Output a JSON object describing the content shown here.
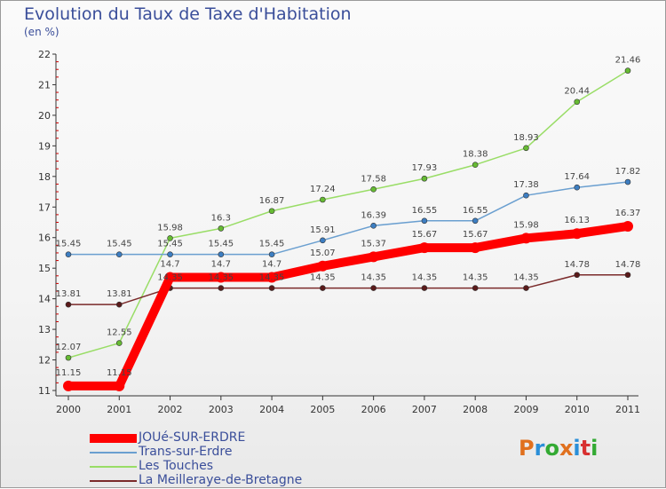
{
  "title": "Evolution du Taux de Taxe d'Habitation",
  "subtitle": "(en %)",
  "logo": "Proxiti",
  "colors": {
    "title": "#3a4e9a",
    "axis": "#333333",
    "grid": "#dddddd",
    "logo_letters": [
      "#e0701e",
      "#2a8fd8",
      "#33aa33",
      "#e0701e",
      "#2a8fd8",
      "#d83030",
      "#33aa33"
    ]
  },
  "chart_data": {
    "type": "line",
    "x": [
      "2000",
      "2001",
      "2002",
      "2003",
      "2004",
      "2005",
      "2006",
      "2007",
      "2008",
      "2009",
      "2010",
      "2011"
    ],
    "ylim": [
      11,
      22
    ],
    "yticks": [
      11,
      12,
      13,
      14,
      15,
      16,
      17,
      18,
      19,
      20,
      21,
      22
    ],
    "grid": false,
    "legend_position": "bottom-left",
    "series": [
      {
        "name": "JOUé-SUR-ERDRE",
        "color": "#ff0000",
        "marker_color": "#ff0000",
        "values": [
          11.15,
          11.15,
          14.7,
          14.7,
          14.7,
          15.07,
          15.37,
          15.67,
          15.67,
          15.98,
          16.13,
          16.37
        ],
        "labels": [
          "11.15",
          "11.15",
          "14.7",
          "14.7",
          "14.7",
          "15.07",
          "15.37",
          "15.67",
          "15.67",
          "15.98",
          "16.13",
          "16.37"
        ]
      },
      {
        "name": "Trans-sur-Erdre",
        "color": "#6a9fd0",
        "marker_color": "#3d7ec2",
        "values": [
          15.45,
          15.45,
          15.45,
          15.45,
          15.45,
          15.91,
          16.39,
          16.55,
          16.55,
          17.38,
          17.64,
          17.82
        ],
        "labels": [
          "15.45",
          "15.45",
          "15.45",
          "15.45",
          "15.45",
          "15.91",
          "16.39",
          "16.55",
          "16.55",
          "17.38",
          "17.64",
          "17.82"
        ]
      },
      {
        "name": "Les Touches",
        "color": "#99dd66",
        "marker_color": "#66bb33",
        "values": [
          12.07,
          12.55,
          15.98,
          16.3,
          16.87,
          17.24,
          17.58,
          17.93,
          18.38,
          18.93,
          20.44,
          21.46
        ],
        "labels": [
          "12.07",
          "12.55",
          "15.98",
          "16.3",
          "16.87",
          "17.24",
          "17.58",
          "17.93",
          "18.38",
          "18.93",
          "20.44",
          "21.46"
        ]
      },
      {
        "name": "La Meilleraye-de-Bretagne",
        "color": "#7a2a2a",
        "marker_color": "#5a1a1a",
        "values": [
          13.81,
          13.81,
          14.35,
          14.35,
          14.35,
          14.35,
          14.35,
          14.35,
          14.35,
          14.35,
          14.78,
          14.78
        ],
        "labels": [
          "13.81",
          "13.81",
          "14.35",
          "14.35",
          "14.35",
          "14.35",
          "14.35",
          "14.35",
          "14.35",
          "14.35",
          "14.78",
          "14.78"
        ]
      }
    ]
  }
}
